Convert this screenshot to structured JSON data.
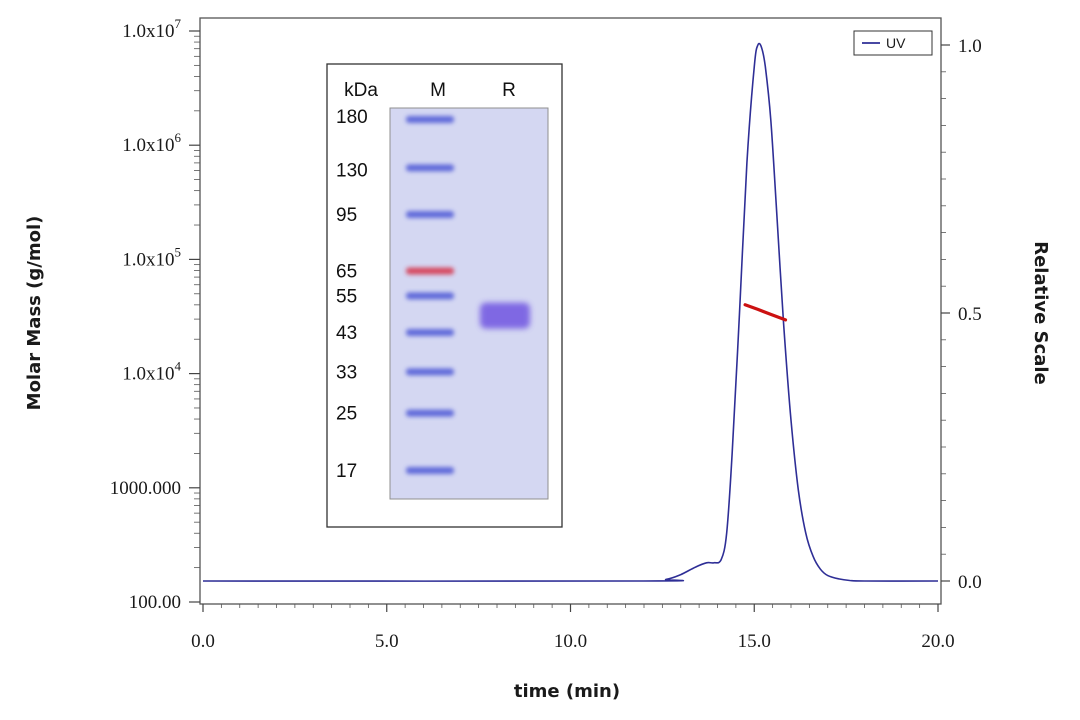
{
  "chart_data": {
    "type": "line",
    "title": "",
    "xlabel": "time (min)",
    "ylabel_left": "Molar Mass (g/mol)",
    "ylabel_right": "Relative Scale",
    "xlim": [
      0,
      20
    ],
    "ylim_right": [
      0,
      1
    ],
    "ylim_left_log10": [
      2,
      7
    ],
    "x_ticks": [
      {
        "value": 0,
        "label": "0.0"
      },
      {
        "value": 5,
        "label": "5.0"
      },
      {
        "value": 10,
        "label": "10.0"
      },
      {
        "value": 15,
        "label": "15.0"
      },
      {
        "value": 20,
        "label": "20.0"
      }
    ],
    "y_right_ticks": [
      {
        "value": 0,
        "label": "0.0"
      },
      {
        "value": 0.5,
        "label": "0.5"
      },
      {
        "value": 1,
        "label": "1.0"
      }
    ],
    "y_left_ticks": [
      {
        "exp": 7,
        "base": "1.0x10",
        "sup": "7",
        "label": ""
      },
      {
        "exp": 6,
        "base": "1.0x10",
        "sup": "6",
        "label": ""
      },
      {
        "exp": 5,
        "base": "1.0x10",
        "sup": "5",
        "label": ""
      },
      {
        "exp": 4,
        "base": "1.0x10",
        "sup": "4",
        "label": ""
      },
      {
        "exp": 3,
        "base": "",
        "sup": "",
        "label": "1000.000"
      },
      {
        "exp": 2,
        "base": "",
        "sup": "",
        "label": "100.00"
      }
    ],
    "legend": {
      "label": "UV",
      "position": "top-right"
    },
    "series": [
      {
        "name": "UV",
        "axis": "right",
        "color": "#2e2e96",
        "x": [
          0,
          12.0,
          12.6,
          13.0,
          13.4,
          13.7,
          13.9,
          14.1,
          14.25,
          14.4,
          14.6,
          14.8,
          15.0,
          15.1,
          15.2,
          15.3,
          15.45,
          15.6,
          15.8,
          16.0,
          16.2,
          16.4,
          16.6,
          16.8,
          17.0,
          17.3,
          17.6,
          18.0,
          20.0
        ],
        "y": [
          0.0,
          0.0,
          0.003,
          0.012,
          0.026,
          0.034,
          0.034,
          0.04,
          0.09,
          0.24,
          0.5,
          0.78,
          0.96,
          1.0,
          0.995,
          0.96,
          0.86,
          0.7,
          0.48,
          0.3,
          0.17,
          0.09,
          0.046,
          0.022,
          0.01,
          0.004,
          0.001,
          0.0,
          0.0
        ]
      },
      {
        "name": "Molar Mass",
        "axis": "left",
        "color": "#cc1111",
        "x": [
          14.75,
          15.1,
          15.45,
          15.85
        ],
        "y": [
          40000,
          36500,
          33000,
          29500
        ]
      }
    ],
    "inset": {
      "type": "sds-page-gel",
      "unit_label": "kDa",
      "lanes": [
        "M",
        "R"
      ],
      "marker_bands_kDa": [
        "180",
        "130",
        "95",
        "65",
        "55",
        "43",
        "33",
        "25",
        "17"
      ],
      "sample_band_kDa": 48,
      "colors": {
        "gel": "#d4d7f2",
        "band": "#4d59d6",
        "band_red": "#d6304a",
        "sample_band": "#6a4ee0"
      }
    }
  }
}
